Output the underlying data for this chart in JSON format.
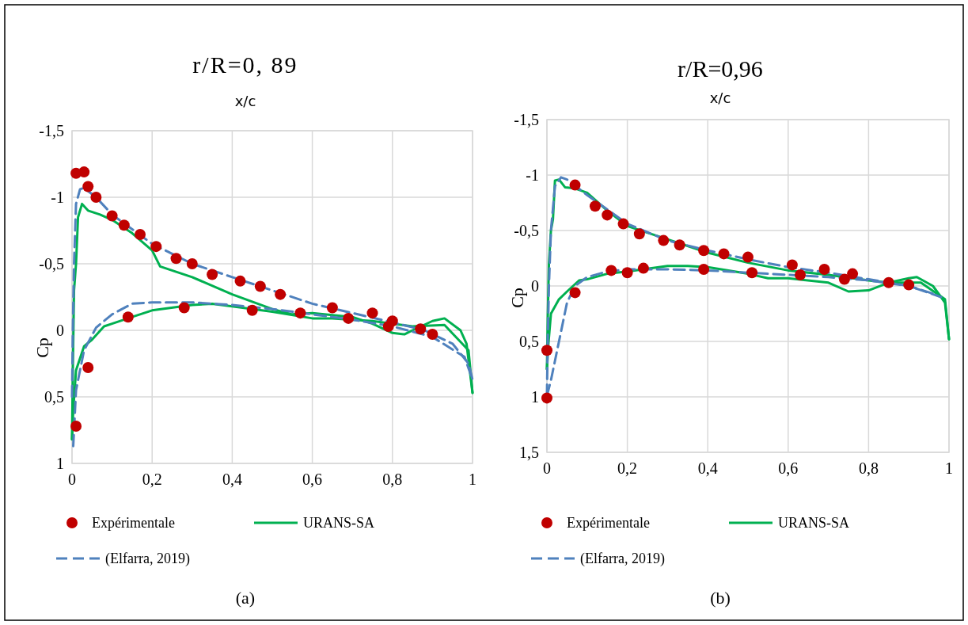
{
  "chart_data": [
    {
      "type": "line",
      "title": "r/R=0, 89",
      "xlabel": "x/c",
      "ylabel": "Cp",
      "annotations": [
        "(a)"
      ],
      "xlim": [
        0,
        1
      ],
      "ylim": [
        1,
        -1.5
      ],
      "xticks": [
        {
          "value": 0,
          "label": "0"
        },
        {
          "value": 0.2,
          "label": "0,2"
        },
        {
          "value": 0.4,
          "label": "0,4"
        },
        {
          "value": 0.6,
          "label": "0,6"
        },
        {
          "value": 0.8,
          "label": "0,8"
        },
        {
          "value": 1,
          "label": "1"
        }
      ],
      "yticks": [
        {
          "value": -1.5,
          "label": "-1,5"
        },
        {
          "value": -1,
          "label": "-1"
        },
        {
          "value": -0.5,
          "label": "-0,5"
        },
        {
          "value": 0,
          "label": "0"
        },
        {
          "value": 0.5,
          "label": "0,5"
        },
        {
          "value": 1,
          "label": "1"
        }
      ],
      "grid": true,
      "legend": "bottom",
      "series": [
        {
          "name": "Expérimentale",
          "type": "scatter",
          "marker": "circle",
          "color": "#c00000",
          "x": [
            0.01,
            0.03,
            0.04,
            0.06,
            0.1,
            0.13,
            0.17,
            0.21,
            0.26,
            0.3,
            0.35,
            0.42,
            0.47,
            0.52,
            0.57,
            0.65,
            0.69,
            0.75,
            0.8,
            0.79,
            0.87,
            0.9,
            0.45,
            0.28,
            0.14,
            0.04,
            0.01
          ],
          "values": [
            -1.18,
            -1.19,
            -1.08,
            -1.0,
            -0.86,
            -0.79,
            -0.72,
            -0.63,
            -0.54,
            -0.5,
            -0.42,
            -0.37,
            -0.33,
            -0.27,
            -0.13,
            -0.17,
            -0.09,
            -0.13,
            -0.07,
            -0.03,
            -0.01,
            0.03,
            -0.15,
            -0.17,
            -0.1,
            0.28,
            0.72
          ]
        },
        {
          "name": "URANS-SA",
          "line_style": "solid",
          "color": "#00b050",
          "x": [
            0,
            0.002,
            0.005,
            0.01,
            0.015,
            0.025,
            0.04,
            0.07,
            0.1,
            0.15,
            0.2,
            0.22,
            0.3,
            0.4,
            0.5,
            0.55,
            0.6,
            0.7,
            0.75,
            0.8,
            0.83,
            0.85,
            0.9,
            0.93,
            0.97,
            0.985,
            1
          ],
          "values": [
            0.82,
            0.3,
            -0.3,
            -0.5,
            -0.85,
            -0.95,
            -0.9,
            -0.87,
            -0.83,
            -0.73,
            -0.6,
            -0.48,
            -0.4,
            -0.27,
            -0.16,
            -0.12,
            -0.13,
            -0.1,
            -0.05,
            0.02,
            0.03,
            0,
            -0.07,
            -0.09,
            0,
            0.1,
            0.47
          ]
        },
        {
          "line_style": "solid",
          "color": "#00b050",
          "x": [
            0,
            0.003,
            0.01,
            0.03,
            0.05,
            0.08,
            0.1,
            0.15,
            0.2,
            0.3,
            0.35,
            0.4,
            0.5,
            0.6,
            0.65,
            0.75,
            0.85,
            0.93,
            0.99,
            1
          ],
          "values": [
            0.82,
            0.6,
            0.3,
            0.12,
            0.07,
            -0.03,
            -0.05,
            -0.1,
            -0.15,
            -0.19,
            -0.2,
            -0.18,
            -0.14,
            -0.09,
            -0.09,
            -0.07,
            -0.03,
            -0.04,
            0.15,
            0.47
          ]
        },
        {
          "name": "(Elfarra, 2019)",
          "line_style": "dashed",
          "color": "#4f81bd",
          "x": [
            0,
            0.002,
            0.005,
            0.01,
            0.02,
            0.03,
            0.06,
            0.1,
            0.2,
            0.3,
            0.4,
            0.5,
            0.6,
            0.7,
            0.8,
            0.88,
            0.95,
            0.99,
            1
          ],
          "values": [
            0.5,
            0,
            -0.5,
            -0.95,
            -1.06,
            -1.07,
            -1.0,
            -0.87,
            -0.65,
            -0.5,
            -0.4,
            -0.3,
            -0.2,
            -0.13,
            -0.06,
            0,
            0.1,
            0.25,
            0.37
          ]
        },
        {
          "line_style": "dashed",
          "color": "#4f81bd",
          "x": [
            0.003,
            0.01,
            0.03,
            0.06,
            0.1,
            0.15,
            0.2,
            0.3,
            0.4,
            0.5,
            0.6,
            0.7,
            0.8,
            0.9,
            0.98,
            1
          ],
          "values": [
            0.87,
            0.45,
            0.15,
            -0.02,
            -0.12,
            -0.2,
            -0.21,
            -0.21,
            -0.19,
            -0.16,
            -0.12,
            -0.08,
            -0.03,
            0.05,
            0.2,
            0.37
          ]
        }
      ]
    },
    {
      "type": "line",
      "title": "r/R=0,96",
      "xlabel": "x/c",
      "ylabel": "Cp",
      "annotations": [
        "(b)"
      ],
      "xlim": [
        0,
        1
      ],
      "ylim": [
        1.5,
        -1.5
      ],
      "xticks": [
        {
          "value": 0,
          "label": "0"
        },
        {
          "value": 0.2,
          "label": "0,2"
        },
        {
          "value": 0.4,
          "label": "0,4"
        },
        {
          "value": 0.6,
          "label": "0,6"
        },
        {
          "value": 0.8,
          "label": "0,8"
        },
        {
          "value": 1,
          "label": "1"
        }
      ],
      "yticks": [
        {
          "value": -1.5,
          "label": "-1,5"
        },
        {
          "value": -1,
          "label": "-1"
        },
        {
          "value": -0.5,
          "label": "-0,5"
        },
        {
          "value": 0,
          "label": "0"
        },
        {
          "value": 0.5,
          "label": "0,5"
        },
        {
          "value": 1,
          "label": "1"
        },
        {
          "value": 1.5,
          "label": "1,5"
        }
      ],
      "grid": true,
      "legend": "bottom",
      "series": [
        {
          "name": "Expérimentale",
          "type": "scatter",
          "marker": "circle",
          "color": "#c00000",
          "x": [
            0.07,
            0.12,
            0.15,
            0.19,
            0.23,
            0.29,
            0.33,
            0.39,
            0.44,
            0.5,
            0.61,
            0.69,
            0.76,
            0.85,
            0.9,
            0.74,
            0.63,
            0.51,
            0.39,
            0.24,
            0.2,
            0.16,
            0.07,
            0,
            0
          ],
          "values": [
            -0.91,
            -0.72,
            -0.64,
            -0.56,
            -0.47,
            -0.41,
            -0.37,
            -0.32,
            -0.29,
            -0.26,
            -0.19,
            -0.15,
            -0.11,
            -0.03,
            -0.01,
            -0.06,
            -0.1,
            -0.12,
            -0.15,
            -0.16,
            -0.12,
            -0.14,
            0.06,
            0.58,
            1.01
          ]
        },
        {
          "name": "URANS-SA",
          "line_style": "solid",
          "color": "#00b050",
          "x": [
            0,
            0.002,
            0.005,
            0.01,
            0.015,
            0.02,
            0.03,
            0.045,
            0.07,
            0.1,
            0.15,
            0.2,
            0.3,
            0.4,
            0.5,
            0.6,
            0.7,
            0.8,
            0.85,
            0.9,
            0.92,
            0.96,
            0.99,
            1
          ],
          "values": [
            0.75,
            0.3,
            -0.2,
            -0.5,
            -0.6,
            -0.95,
            -0.96,
            -0.89,
            -0.88,
            -0.84,
            -0.68,
            -0.54,
            -0.42,
            -0.3,
            -0.21,
            -0.14,
            -0.1,
            -0.05,
            -0.03,
            -0.07,
            -0.08,
            0,
            0.15,
            0.48
          ]
        },
        {
          "line_style": "solid",
          "color": "#00b050",
          "x": [
            0,
            0.003,
            0.01,
            0.03,
            0.05,
            0.08,
            0.1,
            0.15,
            0.2,
            0.3,
            0.35,
            0.4,
            0.5,
            0.55,
            0.6,
            0.7,
            0.75,
            0.8,
            0.85,
            0.93,
            0.99,
            1
          ],
          "values": [
            0.75,
            0.55,
            0.25,
            0.12,
            0.05,
            -0.05,
            -0.06,
            -0.11,
            -0.13,
            -0.18,
            -0.18,
            -0.17,
            -0.11,
            -0.07,
            -0.07,
            -0.03,
            0.05,
            0.04,
            -0.03,
            -0.03,
            0.12,
            0.48
          ]
        },
        {
          "name": "(Elfarra, 2019)",
          "line_style": "dashed",
          "color": "#4f81bd",
          "x": [
            0,
            0.002,
            0.005,
            0.01,
            0.02,
            0.035,
            0.05,
            0.1,
            0.2,
            0.3,
            0.4,
            0.5,
            0.6,
            0.7,
            0.8,
            0.9,
            0.98
          ],
          "values": [
            0.99,
            0.5,
            0,
            -0.5,
            -0.9,
            -0.98,
            -0.96,
            -0.82,
            -0.56,
            -0.41,
            -0.32,
            -0.24,
            -0.17,
            -0.12,
            -0.06,
            0,
            0.1
          ]
        },
        {
          "line_style": "dashed",
          "color": "#4f81bd",
          "x": [
            0,
            0.01,
            0.03,
            0.05,
            0.07,
            0.1,
            0.15,
            0.2,
            0.3,
            0.4,
            0.5,
            0.6,
            0.7,
            0.8,
            0.9,
            0.97
          ],
          "values": [
            0.99,
            0.85,
            0.5,
            0.15,
            0,
            -0.08,
            -0.13,
            -0.15,
            -0.15,
            -0.14,
            -0.12,
            -0.1,
            -0.08,
            -0.05,
            0,
            0.08
          ]
        }
      ]
    }
  ]
}
